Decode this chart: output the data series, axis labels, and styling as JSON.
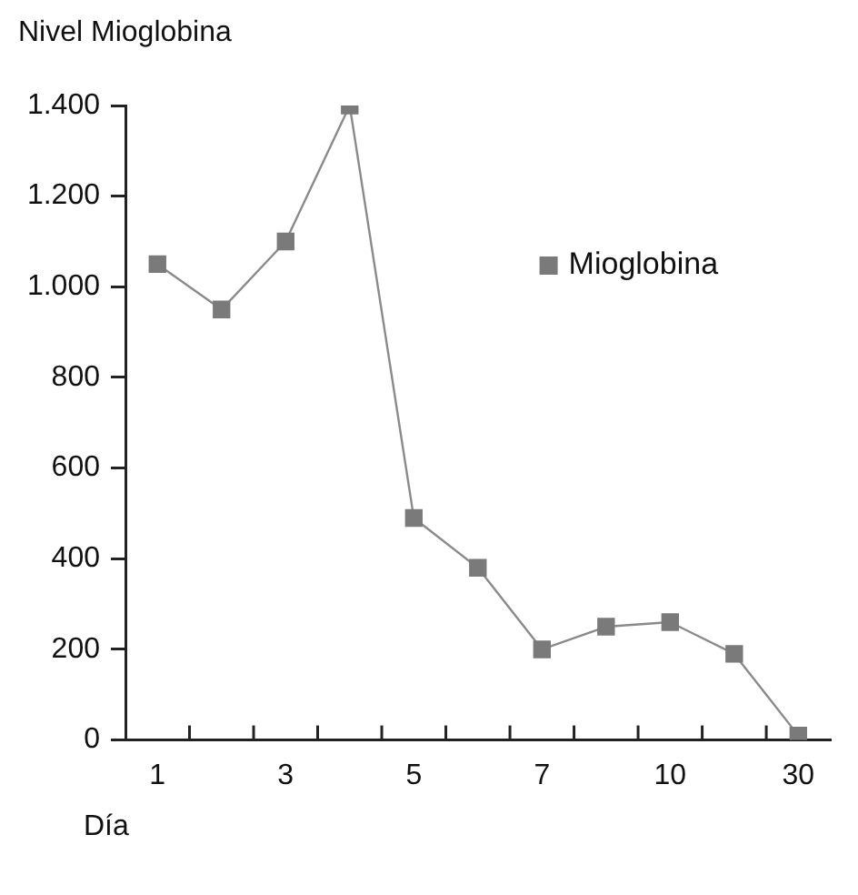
{
  "chart_data": {
    "type": "line",
    "ylabel": "Nivel Mioglobina",
    "xlabel": "Día",
    "categories": [
      "1",
      null,
      "3",
      null,
      "5",
      null,
      "7",
      null,
      "10",
      null,
      "30"
    ],
    "series": [
      {
        "name": "Mioglobina",
        "color": "#7a7a7a",
        "values": [
          1050,
          950,
          1100,
          1400,
          490,
          380,
          200,
          250,
          260,
          190,
          10
        ]
      }
    ],
    "ylim": [
      0,
      1400
    ],
    "yticks": [
      0,
      200,
      400,
      600,
      800,
      {
        "value": 1000,
        "label": "1.000"
      },
      {
        "value": 1200,
        "label": "1.200"
      },
      {
        "value": 1400,
        "label": "1.400"
      }
    ],
    "marker": "square",
    "line_style": "solid",
    "legend": "top right",
    "grid": false
  }
}
